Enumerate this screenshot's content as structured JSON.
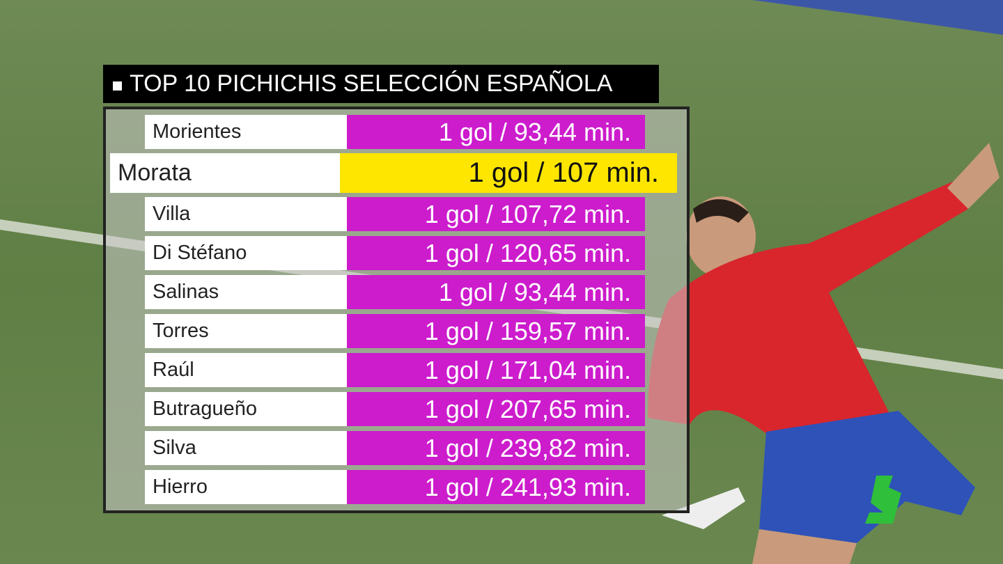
{
  "title": "TOP 10 PICHICHIS SELECCIÓN ESPAÑOLA",
  "table": {
    "rows": [
      {
        "name": "Morientes",
        "time": "1 gol / 93,44 min."
      },
      {
        "name": "Morata",
        "time": "1 gol / 107 min.",
        "highlighted": true
      },
      {
        "name": "Villa",
        "time": "1 gol / 107,72 min."
      },
      {
        "name": "Di Stéfano",
        "time": "1 gol / 120,65 min."
      },
      {
        "name": "Salinas",
        "time": "1 gol / 93,44 min."
      },
      {
        "name": "Torres",
        "time": "1 gol / 159,57 min."
      },
      {
        "name": "Raúl",
        "time": "1 gol / 171,04 min."
      },
      {
        "name": "Butragueño",
        "time": "1 gol / 207,65 min."
      },
      {
        "name": "Silva",
        "time": "1 gol / 239,82 min."
      },
      {
        "name": "Hierro",
        "time": "1 gol / 241,93 min."
      }
    ]
  }
}
